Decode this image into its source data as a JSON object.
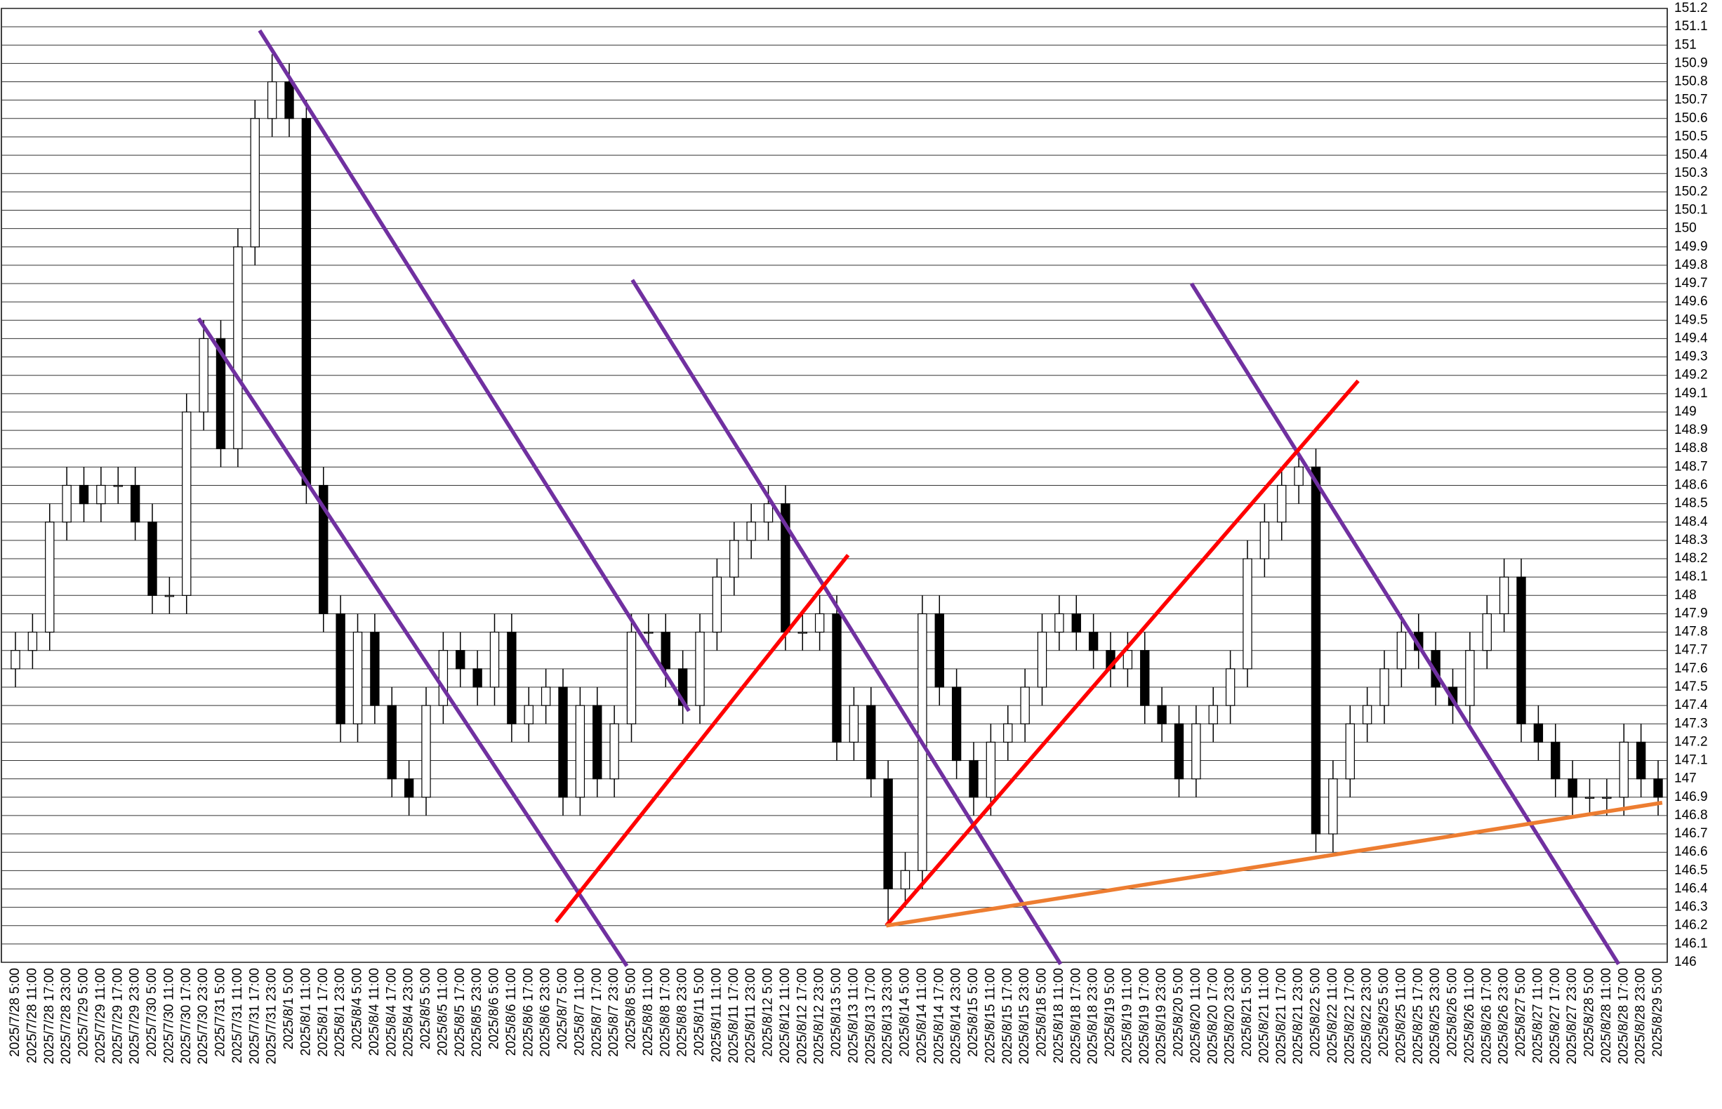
{
  "chart_data": {
    "type": "candlestick",
    "categories": [
      "2025/7/28 5:00",
      "2025/7/28 11:00",
      "2025/7/28 17:00",
      "2025/7/28 23:00",
      "2025/7/29 5:00",
      "2025/7/29 11:00",
      "2025/7/29 17:00",
      "2025/7/29 23:00",
      "2025/7/30 5:00",
      "2025/7/30 11:00",
      "2025/7/30 17:00",
      "2025/7/30 23:00",
      "2025/7/31 5:00",
      "2025/7/31 11:00",
      "2025/7/31 17:00",
      "2025/7/31 23:00",
      "2025/8/1 5:00",
      "2025/8/1 11:00",
      "2025/8/1 17:00",
      "2025/8/1 23:00",
      "2025/8/4 5:00",
      "2025/8/4 11:00",
      "2025/8/4 17:00",
      "2025/8/4 23:00",
      "2025/8/5 5:00",
      "2025/8/5 11:00",
      "2025/8/5 17:00",
      "2025/8/5 23:00",
      "2025/8/6 5:00",
      "2025/8/6 11:00",
      "2025/8/6 17:00",
      "2025/8/6 23:00",
      "2025/8/7 5:00",
      "2025/8/7 11:00",
      "2025/8/7 17:00",
      "2025/8/7 23:00",
      "2025/8/8 5:00",
      "2025/8/8 11:00",
      "2025/8/8 17:00",
      "2025/8/8 23:00",
      "2025/8/11 5:00",
      "2025/8/11 11:00",
      "2025/8/11 17:00",
      "2025/8/11 23:00",
      "2025/8/12 5:00",
      "2025/8/12 11:00",
      "2025/8/12 17:00",
      "2025/8/12 23:00",
      "2025/8/13 5:00",
      "2025/8/13 11:00",
      "2025/8/13 17:00",
      "2025/8/13 23:00",
      "2025/8/14 5:00",
      "2025/8/14 11:00",
      "2025/8/14 17:00",
      "2025/8/14 23:00",
      "2025/8/15 5:00",
      "2025/8/15 11:00",
      "2025/8/15 17:00",
      "2025/8/15 23:00",
      "2025/8/18 5:00",
      "2025/8/18 11:00",
      "2025/8/18 17:00",
      "2025/8/18 23:00",
      "2025/8/19 5:00",
      "2025/8/19 11:00",
      "2025/8/19 17:00",
      "2025/8/19 23:00",
      "2025/8/20 5:00",
      "2025/8/20 11:00",
      "2025/8/20 17:00",
      "2025/8/20 23:00",
      "2025/8/21 5:00",
      "2025/8/21 11:00",
      "2025/8/21 17:00",
      "2025/8/21 23:00",
      "2025/8/22 5:00",
      "2025/8/22 11:00",
      "2025/8/22 17:00",
      "2025/8/22 23:00",
      "2025/8/25 5:00",
      "2025/8/25 11:00",
      "2025/8/25 17:00",
      "2025/8/25 23:00",
      "2025/8/26 5:00",
      "2025/8/26 11:00",
      "2025/8/26 17:00",
      "2025/8/26 23:00",
      "2025/8/27 5:00",
      "2025/8/27 11:00",
      "2025/8/27 17:00",
      "2025/8/27 23:00",
      "2025/8/28 5:00",
      "2025/8/28 11:00",
      "2025/8/28 17:00",
      "2025/8/28 23:00",
      "2025/8/29 5:00"
    ],
    "open": [
      147.6,
      147.7,
      147.8,
      148.4,
      148.6,
      148.5,
      148.6,
      148.6,
      148.4,
      148.0,
      148.0,
      149.0,
      149.4,
      148.8,
      149.9,
      150.6,
      150.8,
      150.6,
      148.6,
      147.9,
      147.3,
      147.8,
      147.4,
      147.0,
      146.9,
      147.4,
      147.7,
      147.6,
      147.5,
      147.8,
      147.3,
      147.4,
      147.5,
      146.9,
      147.4,
      147.0,
      147.3,
      147.8,
      147.8,
      147.6,
      147.4,
      147.8,
      148.1,
      148.3,
      148.4,
      148.5,
      147.8,
      147.8,
      147.9,
      147.2,
      147.4,
      147.0,
      146.4,
      146.5,
      147.9,
      147.5,
      147.1,
      146.9,
      147.2,
      147.3,
      147.5,
      147.8,
      147.9,
      147.8,
      147.7,
      147.6,
      147.7,
      147.4,
      147.3,
      147.0,
      147.3,
      147.4,
      147.6,
      148.2,
      148.4,
      148.6,
      148.7,
      146.7,
      147.0,
      147.3,
      147.4,
      147.6,
      147.8,
      147.7,
      147.5,
      147.4,
      147.7,
      147.9,
      148.1,
      147.3,
      147.2,
      147.0,
      146.9,
      146.9,
      146.9,
      147.2,
      147.0
    ],
    "high": [
      147.8,
      147.9,
      148.5,
      148.7,
      148.7,
      148.7,
      148.7,
      148.7,
      148.5,
      148.1,
      149.1,
      149.5,
      149.5,
      150.0,
      150.7,
      150.95,
      150.9,
      150.7,
      148.7,
      148.0,
      147.9,
      147.9,
      147.5,
      147.1,
      147.5,
      147.8,
      147.8,
      147.7,
      147.9,
      147.9,
      147.5,
      147.6,
      147.6,
      147.5,
      147.5,
      147.4,
      147.9,
      147.9,
      147.9,
      147.7,
      147.9,
      148.2,
      148.4,
      148.5,
      148.6,
      148.6,
      147.9,
      148.0,
      148.0,
      147.5,
      147.5,
      147.1,
      146.6,
      148.0,
      148.0,
      147.6,
      147.2,
      147.3,
      147.4,
      147.6,
      147.9,
      148.0,
      148.0,
      147.9,
      147.8,
      147.8,
      147.8,
      147.5,
      147.4,
      147.4,
      147.5,
      147.7,
      148.3,
      148.5,
      148.7,
      148.8,
      148.8,
      147.1,
      147.4,
      147.5,
      147.7,
      147.9,
      147.9,
      147.8,
      147.6,
      147.8,
      148.0,
      148.2,
      148.2,
      147.4,
      147.3,
      147.1,
      147.0,
      147.0,
      147.3,
      147.3,
      147.1
    ],
    "low": [
      147.5,
      147.6,
      147.7,
      148.3,
      148.4,
      148.4,
      148.5,
      148.3,
      147.9,
      147.9,
      147.9,
      148.9,
      148.7,
      148.7,
      149.8,
      150.5,
      150.5,
      148.5,
      147.8,
      147.2,
      147.2,
      147.3,
      146.9,
      146.8,
      146.8,
      147.3,
      147.5,
      147.4,
      147.4,
      147.2,
      147.2,
      147.3,
      146.8,
      146.8,
      146.9,
      146.9,
      147.2,
      147.7,
      147.5,
      147.3,
      147.3,
      147.7,
      148.0,
      148.2,
      148.3,
      147.7,
      147.7,
      147.7,
      147.1,
      147.1,
      146.9,
      146.2,
      146.3,
      146.4,
      147.4,
      147.0,
      146.8,
      146.8,
      147.1,
      147.2,
      147.4,
      147.7,
      147.7,
      147.6,
      147.5,
      147.5,
      147.3,
      147.2,
      146.9,
      146.9,
      147.2,
      147.3,
      147.5,
      148.1,
      148.3,
      148.5,
      146.6,
      146.6,
      146.9,
      147.2,
      147.3,
      147.5,
      147.6,
      147.4,
      147.3,
      147.3,
      147.6,
      147.8,
      147.2,
      147.1,
      146.9,
      146.8,
      146.8,
      146.8,
      146.8,
      146.9,
      146.8
    ],
    "close": [
      147.7,
      147.8,
      148.4,
      148.6,
      148.5,
      148.6,
      148.6,
      148.4,
      148.0,
      148.0,
      149.0,
      149.4,
      148.8,
      149.9,
      150.6,
      150.8,
      150.6,
      148.6,
      147.9,
      147.3,
      147.8,
      147.4,
      147.0,
      146.9,
      147.4,
      147.7,
      147.6,
      147.5,
      147.8,
      147.3,
      147.4,
      147.5,
      146.9,
      147.4,
      147.0,
      147.3,
      147.8,
      147.8,
      147.6,
      147.4,
      147.8,
      148.1,
      148.3,
      148.4,
      148.5,
      147.8,
      147.8,
      147.9,
      147.2,
      147.4,
      147.0,
      146.4,
      146.5,
      147.9,
      147.5,
      147.1,
      146.9,
      147.2,
      147.3,
      147.5,
      147.8,
      147.9,
      147.8,
      147.7,
      147.6,
      147.7,
      147.4,
      147.3,
      147.0,
      147.3,
      147.4,
      147.6,
      148.2,
      148.4,
      148.6,
      148.7,
      146.7,
      147.0,
      147.3,
      147.4,
      147.6,
      147.8,
      147.7,
      147.5,
      147.4,
      147.7,
      147.9,
      148.1,
      147.3,
      147.2,
      147.0,
      146.9,
      146.9,
      146.9,
      147.2,
      147.0,
      146.9
    ],
    "up_color": "#ffffff",
    "down_color": "#000000",
    "ylim": [
      146,
      151.2
    ],
    "yticks": [
      146,
      146.1,
      146.2,
      146.3,
      146.4,
      146.5,
      146.6,
      146.7,
      146.8,
      146.9,
      147,
      147.1,
      147.2,
      147.3,
      147.4,
      147.5,
      147.6,
      147.7,
      147.8,
      147.9,
      148,
      148.1,
      148.2,
      148.3,
      148.4,
      148.5,
      148.6,
      148.7,
      148.8,
      148.9,
      149,
      149.1,
      149.2,
      149.3,
      149.4,
      149.5,
      149.6,
      149.7,
      149.8,
      149.9,
      150,
      150.1,
      150.2,
      150.3,
      150.4,
      150.5,
      150.6,
      150.7,
      150.8,
      150.9,
      151,
      151.1,
      151.2
    ],
    "grid": true,
    "trend_lines": [
      {
        "color": "#7030a0",
        "x": [
          14.27,
          39.36
        ],
        "y": [
          151.08,
          147.37
        ]
      },
      {
        "color": "#7030a0",
        "x": [
          10.7,
          35.73
        ],
        "y": [
          149.51,
          145.98
        ]
      },
      {
        "color": "#7030a0",
        "x": [
          36.05,
          61.08
        ],
        "y": [
          149.72,
          145.99
        ]
      },
      {
        "color": "#7030a0",
        "x": [
          68.73,
          93.69
        ],
        "y": [
          149.7,
          145.99
        ]
      },
      {
        "color": "#ff0000",
        "x": [
          31.59,
          48.66
        ],
        "y": [
          146.22,
          148.22
        ]
      },
      {
        "color": "#ff0000",
        "x": [
          50.89,
          78.47
        ],
        "y": [
          146.2,
          149.17
        ]
      },
      {
        "color": "#ed7d31",
        "x": [
          50.89,
          96.24
        ],
        "y": [
          146.2,
          146.87
        ]
      }
    ]
  }
}
